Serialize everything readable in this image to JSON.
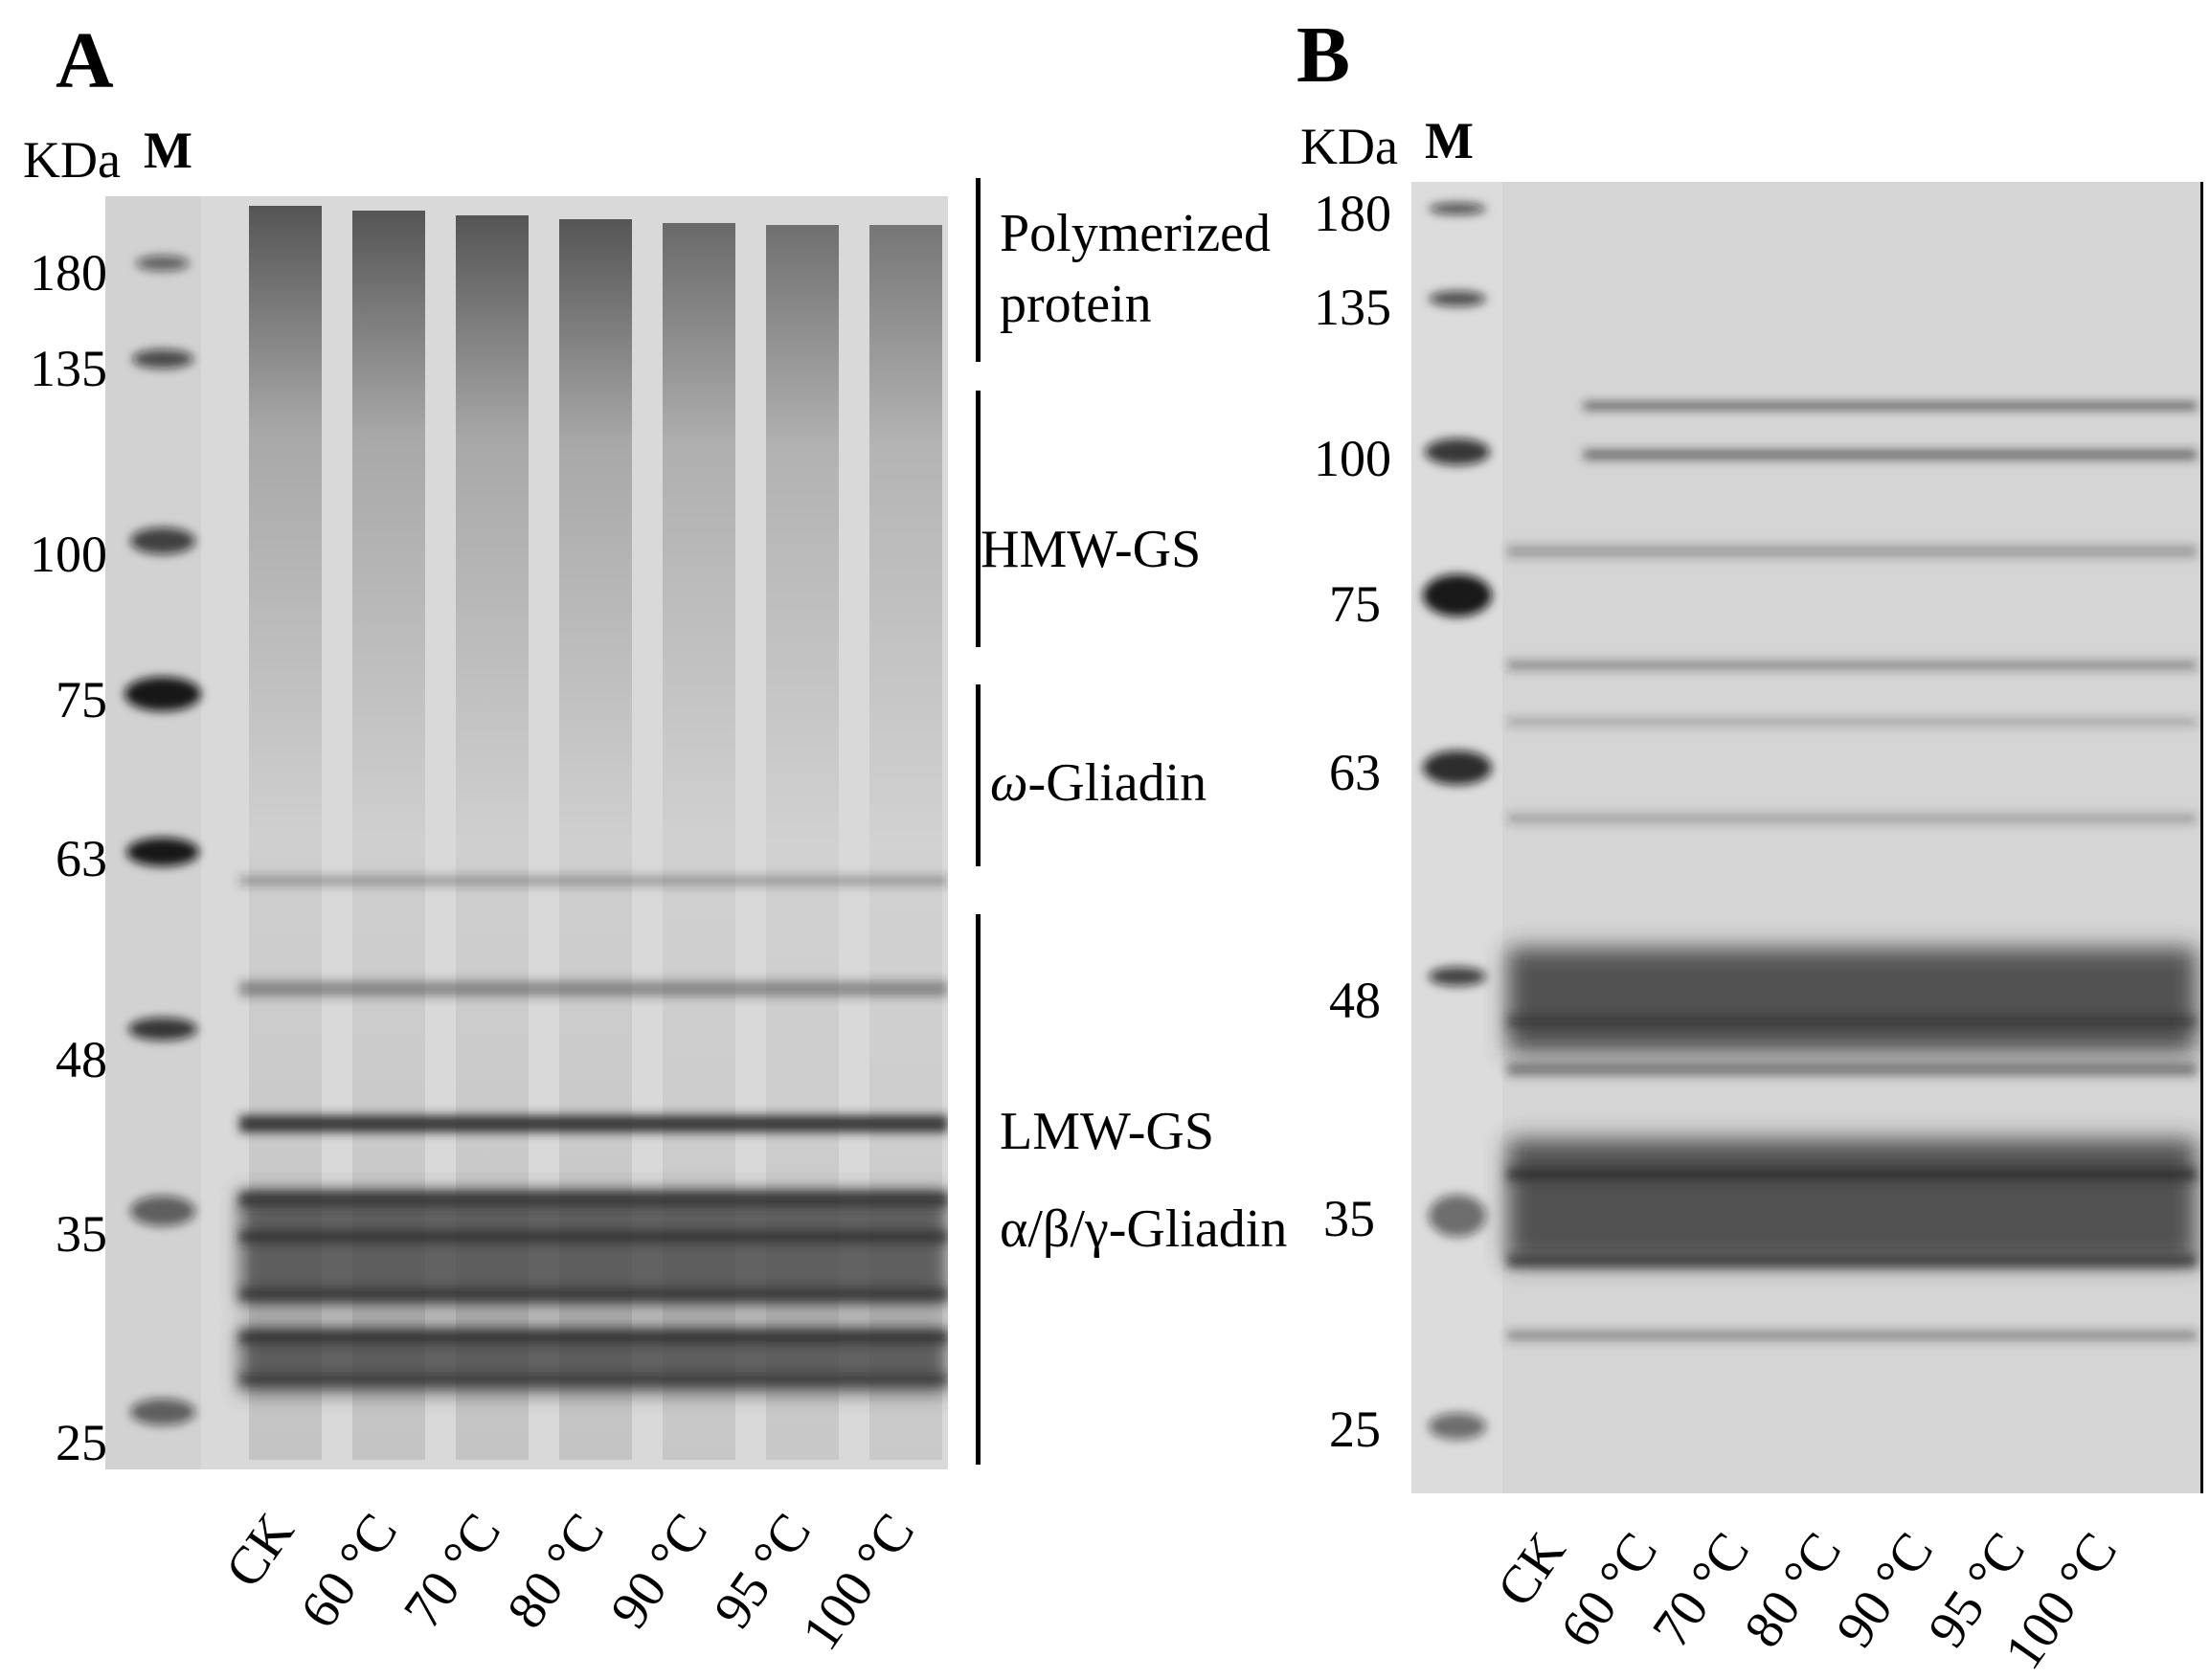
{
  "panels": [
    {
      "letter": "A",
      "unit_label": "KDa",
      "marker_label": "M",
      "marker_weights": [
        "180",
        "135",
        "100",
        "75",
        "63",
        "48",
        "35",
        "25"
      ],
      "lanes": [
        "CK",
        "60 °C",
        "70 °C",
        "80 °C",
        "90 °C",
        "95 °C",
        "100 °C"
      ],
      "annotations": [
        {
          "line1": "Polymerized",
          "line2": "protein"
        },
        {
          "line1": "HMW-GS"
        },
        {
          "prefix": "ω",
          "line1": "-Gliadin"
        },
        {
          "line1": "LMW-GS",
          "line2": "α/β/γ-Gliadin"
        }
      ]
    },
    {
      "letter": "B",
      "unit_label": "KDa",
      "marker_label": "M",
      "marker_weights": [
        "180",
        "135",
        "100",
        "75",
        "63",
        "48",
        "35",
        "25"
      ],
      "lanes": [
        "CK",
        "60 °C",
        "70 °C",
        "80 °C",
        "90 °C",
        "95 °C",
        "100 °C"
      ]
    }
  ]
}
